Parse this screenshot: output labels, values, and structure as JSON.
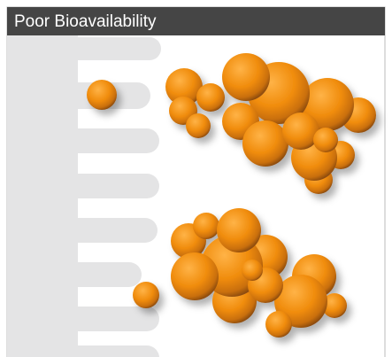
{
  "header": {
    "title": "Poor Bioavailability"
  }
}
